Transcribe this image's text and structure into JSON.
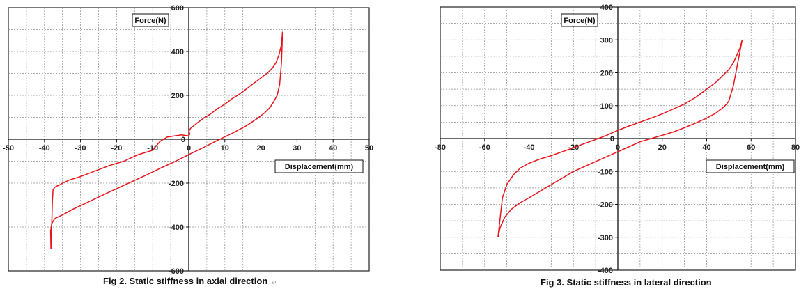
{
  "chart_data": [
    {
      "type": "line",
      "caption": "Fig 2. Static stiffness in axial direction",
      "xlabel": "Displacement(mm)",
      "ylabel": "Force(N)",
      "xlim": [
        -50,
        50
      ],
      "ylim": [
        -600,
        600
      ],
      "xticks": [
        -50,
        -40,
        -30,
        -20,
        -10,
        0,
        10,
        20,
        30,
        40,
        50
      ],
      "yticks": [
        -600,
        -400,
        -200,
        0,
        200,
        400,
        600
      ],
      "grid": true,
      "line_color": "#e8141b",
      "series": [
        {
          "x": [
            -38.2,
            -38.3,
            -38.0,
            -37.5,
            -37.0,
            -35.0,
            -32.0,
            -28.0,
            -24.0,
            -20.0,
            -16.0,
            -12.0,
            -8.0,
            -4.0,
            0.0,
            4.0,
            8.0,
            12.0,
            16.0,
            19.0,
            21.0,
            22.5,
            23.5,
            24.5,
            25.2,
            25.7,
            26.0
          ],
          "y": [
            -500,
            -420,
            -385,
            -370,
            -360,
            -345,
            -318,
            -287,
            -256,
            -225,
            -195,
            -165,
            -133,
            -103,
            -70,
            -38,
            -5,
            27,
            62,
            95,
            120,
            145,
            170,
            200,
            250,
            350,
            490
          ]
        },
        {
          "x": [
            26.0,
            25.6,
            25.0,
            24.2,
            23.2,
            22.0,
            20.0,
            18.0,
            16.0,
            14.0,
            12.0,
            10.0,
            8.0,
            6.0,
            4.0,
            2.0,
            0.5,
            0.0,
            0.3,
            0.0,
            -2.0,
            -4.0,
            -6.0,
            -8.0,
            -10.0,
            -14.0,
            -18.0,
            -22.0,
            -26.0,
            -30.0,
            -33.0,
            -35.0,
            -36.0,
            -36.8,
            -37.2,
            -37.6,
            -37.8,
            -38.0,
            -38.2
          ],
          "y": [
            490,
            425,
            385,
            350,
            325,
            305,
            280,
            255,
            230,
            205,
            185,
            160,
            140,
            115,
            95,
            70,
            50,
            35,
            25,
            15,
            20,
            15,
            10,
            -10,
            -50,
            -70,
            -100,
            -120,
            -145,
            -170,
            -185,
            -200,
            -210,
            -215,
            -220,
            -230,
            -280,
            -400,
            -500
          ]
        }
      ]
    },
    {
      "type": "line",
      "caption": "Fig 3. Static stiffness in lateral direction",
      "xlabel": "Displacement(mm)",
      "ylabel": "Force(N)",
      "xlim": [
        -80,
        80
      ],
      "ylim": [
        -400,
        400
      ],
      "xticks": [
        -80,
        -60,
        -40,
        -20,
        0,
        20,
        40,
        60,
        80
      ],
      "yticks": [
        -400,
        -300,
        -200,
        -100,
        0,
        100,
        200,
        300,
        400
      ],
      "grid": true,
      "line_color": "#e8141b",
      "series": [
        {
          "x": [
            -54.0,
            -53.0,
            -51.0,
            -48.0,
            -44.0,
            -40.0,
            -35.0,
            -30.0,
            -25.0,
            -20.0,
            -15.0,
            -10.0,
            -5.0,
            0.0,
            5.0,
            10.0,
            15.0,
            20.0,
            25.0,
            30.0,
            35.0,
            40.0,
            44.0,
            47.0,
            49.0,
            50.0,
            52.0,
            54.0,
            56.0
          ],
          "y": [
            -300,
            -270,
            -240,
            -215,
            -195,
            -180,
            -160,
            -140,
            -120,
            -100,
            -85,
            -70,
            -55,
            -40,
            -25,
            -10,
            0,
            10,
            20,
            33,
            47,
            62,
            77,
            92,
            105,
            115,
            160,
            230,
            300
          ]
        },
        {
          "x": [
            56.0,
            55.0,
            54.0,
            52.0,
            50.0,
            47.0,
            44.0,
            40.0,
            35.0,
            30.0,
            25.0,
            20.0,
            15.0,
            10.0,
            5.0,
            0.0,
            -5.0,
            -10.0,
            -15.0,
            -20.0,
            -25.0,
            -30.0,
            -35.0,
            -40.0,
            -44.0,
            -47.0,
            -50.0,
            -52.0,
            -53.0,
            -54.0
          ],
          "y": [
            300,
            275,
            260,
            230,
            210,
            190,
            170,
            150,
            125,
            105,
            90,
            75,
            62,
            50,
            38,
            25,
            10,
            -3,
            -15,
            -28,
            -40,
            -52,
            -62,
            -75,
            -90,
            -110,
            -140,
            -180,
            -240,
            -300
          ]
        }
      ]
    }
  ]
}
